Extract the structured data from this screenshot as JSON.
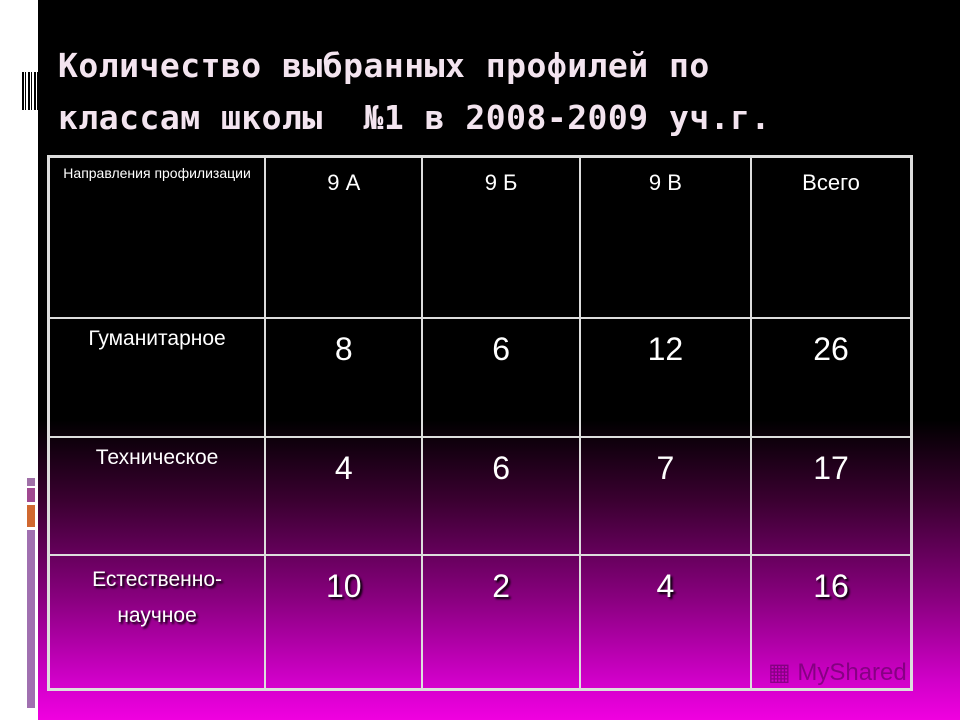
{
  "title": {
    "line1": "Количество выбранных профилей по",
    "line2": "классам школы  №1 в 2008-2009 уч.г."
  },
  "table": {
    "header": [
      "Направления профилизации",
      "9 А",
      "9 Б",
      "9 В",
      "Всего"
    ],
    "rows": [
      {
        "label": "Гуманитарное",
        "values": [
          "8",
          "6",
          "12",
          "26"
        ]
      },
      {
        "label": "Техническое",
        "values": [
          "4",
          "6",
          "7",
          "17"
        ]
      },
      {
        "label": "Естественно-научное",
        "label_line1": "Естественно-",
        "label_line2": "научное",
        "values": [
          "10",
          "2",
          "4",
          "16"
        ]
      }
    ]
  },
  "watermark": "MyShared",
  "colors": {
    "background_top": "#000000",
    "background_bottom": "#f000e0",
    "title": "#f3e4ef"
  }
}
